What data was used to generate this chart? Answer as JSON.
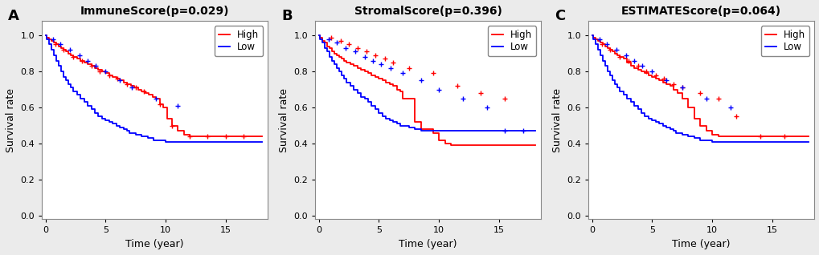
{
  "panels": [
    {
      "label": "A",
      "title": "ImmuneScore(p=0.029)",
      "high": {
        "times": [
          0,
          0.1,
          0.3,
          0.5,
          0.7,
          0.9,
          1.1,
          1.3,
          1.5,
          1.7,
          1.9,
          2.1,
          2.3,
          2.6,
          2.9,
          3.2,
          3.5,
          3.8,
          4.1,
          4.4,
          4.7,
          5.0,
          5.3,
          5.6,
          5.9,
          6.2,
          6.5,
          6.8,
          7.1,
          7.4,
          7.7,
          8.0,
          8.3,
          8.6,
          8.9,
          9.2,
          9.5,
          9.8,
          10.1,
          10.5,
          11.0,
          11.5,
          12.0,
          13.0,
          14.0,
          15.0,
          16.0,
          17.0,
          18.0
        ],
        "surv": [
          1.0,
          0.99,
          0.98,
          0.97,
          0.96,
          0.95,
          0.94,
          0.93,
          0.92,
          0.91,
          0.9,
          0.89,
          0.88,
          0.87,
          0.86,
          0.85,
          0.84,
          0.83,
          0.82,
          0.81,
          0.8,
          0.79,
          0.78,
          0.77,
          0.76,
          0.75,
          0.74,
          0.73,
          0.72,
          0.71,
          0.7,
          0.69,
          0.68,
          0.67,
          0.66,
          0.65,
          0.62,
          0.6,
          0.54,
          0.5,
          0.47,
          0.45,
          0.44,
          0.44,
          0.44,
          0.44,
          0.44,
          0.44,
          0.44
        ],
        "censor_times": [
          0.8,
          1.5,
          2.3,
          3.0,
          3.8,
          4.5,
          5.3,
          6.0,
          6.8,
          7.5,
          8.2,
          9.5,
          10.5,
          12.0,
          13.5,
          15.0,
          16.5
        ],
        "censor_surv": [
          0.95,
          0.92,
          0.88,
          0.86,
          0.83,
          0.8,
          0.78,
          0.76,
          0.73,
          0.71,
          0.69,
          0.62,
          0.5,
          0.44,
          0.44,
          0.44,
          0.44
        ]
      },
      "low": {
        "times": [
          0,
          0.1,
          0.3,
          0.5,
          0.7,
          0.9,
          1.1,
          1.3,
          1.5,
          1.7,
          1.9,
          2.1,
          2.3,
          2.6,
          2.9,
          3.2,
          3.5,
          3.8,
          4.1,
          4.4,
          4.7,
          5.0,
          5.3,
          5.6,
          5.9,
          6.2,
          6.5,
          6.8,
          7.0,
          7.5,
          8.0,
          8.5,
          9.0,
          9.5,
          10.0,
          10.5,
          11.0,
          11.5,
          12.0,
          13.0,
          14.0,
          15.0,
          16.0,
          17.0,
          18.0
        ],
        "surv": [
          1.0,
          0.98,
          0.95,
          0.92,
          0.89,
          0.86,
          0.83,
          0.8,
          0.77,
          0.75,
          0.73,
          0.71,
          0.69,
          0.67,
          0.65,
          0.63,
          0.61,
          0.59,
          0.57,
          0.55,
          0.54,
          0.53,
          0.52,
          0.51,
          0.5,
          0.49,
          0.48,
          0.47,
          0.46,
          0.45,
          0.44,
          0.43,
          0.42,
          0.42,
          0.41,
          0.41,
          0.41,
          0.41,
          0.41,
          0.41,
          0.41,
          0.41,
          0.41,
          0.41,
          0.41
        ],
        "censor_times": [
          0.6,
          1.2,
          2.0,
          2.8,
          3.5,
          4.2,
          5.0,
          6.2,
          7.2,
          9.2,
          11.0
        ],
        "censor_surv": [
          0.98,
          0.95,
          0.92,
          0.89,
          0.86,
          0.83,
          0.8,
          0.75,
          0.71,
          0.65,
          0.61
        ]
      }
    },
    {
      "label": "B",
      "title": "StromalScore(p=0.396)",
      "high": {
        "times": [
          0,
          0.1,
          0.3,
          0.5,
          0.7,
          0.9,
          1.1,
          1.3,
          1.5,
          1.7,
          1.9,
          2.1,
          2.3,
          2.6,
          2.9,
          3.2,
          3.5,
          3.8,
          4.1,
          4.4,
          4.7,
          5.0,
          5.3,
          5.6,
          5.9,
          6.2,
          6.5,
          6.8,
          7.0,
          7.5,
          8.0,
          8.5,
          9.0,
          9.5,
          10.0,
          10.5,
          11.0,
          12.0,
          13.0,
          14.0,
          15.0,
          16.0,
          17.0,
          18.0
        ],
        "surv": [
          1.0,
          0.99,
          0.97,
          0.96,
          0.94,
          0.93,
          0.91,
          0.9,
          0.89,
          0.88,
          0.87,
          0.86,
          0.85,
          0.84,
          0.83,
          0.82,
          0.81,
          0.8,
          0.79,
          0.78,
          0.77,
          0.76,
          0.75,
          0.74,
          0.73,
          0.72,
          0.7,
          0.69,
          0.65,
          0.65,
          0.52,
          0.48,
          0.48,
          0.46,
          0.42,
          0.4,
          0.39,
          0.39,
          0.39,
          0.39,
          0.39,
          0.39,
          0.39,
          0.39
        ],
        "censor_times": [
          1.0,
          1.8,
          2.5,
          3.2,
          4.0,
          4.7,
          5.5,
          6.2,
          7.5,
          9.5,
          11.5,
          13.5,
          15.5
        ],
        "censor_surv": [
          0.99,
          0.97,
          0.95,
          0.93,
          0.91,
          0.89,
          0.87,
          0.85,
          0.82,
          0.79,
          0.72,
          0.68,
          0.65
        ]
      },
      "low": {
        "times": [
          0,
          0.1,
          0.3,
          0.5,
          0.7,
          0.9,
          1.1,
          1.3,
          1.5,
          1.7,
          1.9,
          2.1,
          2.3,
          2.6,
          2.9,
          3.2,
          3.5,
          3.8,
          4.1,
          4.4,
          4.7,
          5.0,
          5.3,
          5.6,
          5.9,
          6.2,
          6.5,
          6.8,
          7.0,
          7.5,
          8.0,
          8.5,
          9.0,
          9.5,
          10.0,
          10.5,
          11.0,
          12.0,
          13.0,
          14.0,
          15.0,
          16.0,
          17.0,
          18.0
        ],
        "surv": [
          1.0,
          0.98,
          0.96,
          0.93,
          0.91,
          0.88,
          0.86,
          0.84,
          0.82,
          0.8,
          0.78,
          0.76,
          0.74,
          0.72,
          0.7,
          0.68,
          0.66,
          0.65,
          0.63,
          0.61,
          0.59,
          0.57,
          0.55,
          0.54,
          0.53,
          0.52,
          0.51,
          0.5,
          0.5,
          0.49,
          0.48,
          0.47,
          0.47,
          0.47,
          0.47,
          0.47,
          0.47,
          0.47,
          0.47,
          0.47,
          0.47,
          0.47,
          0.47,
          0.47
        ],
        "censor_times": [
          0.8,
          1.5,
          2.2,
          3.0,
          3.8,
          4.5,
          5.2,
          6.0,
          7.0,
          8.5,
          10.0,
          12.0,
          14.0,
          15.5,
          17.0
        ],
        "censor_surv": [
          0.98,
          0.96,
          0.93,
          0.91,
          0.88,
          0.86,
          0.84,
          0.82,
          0.79,
          0.75,
          0.7,
          0.65,
          0.6,
          0.47,
          0.47
        ]
      }
    },
    {
      "label": "C",
      "title": "ESTIMATEScore(p=0.064)",
      "high": {
        "times": [
          0,
          0.1,
          0.3,
          0.5,
          0.7,
          0.9,
          1.1,
          1.3,
          1.5,
          1.7,
          1.9,
          2.1,
          2.3,
          2.6,
          2.9,
          3.2,
          3.5,
          3.8,
          4.1,
          4.4,
          4.7,
          5.0,
          5.3,
          5.6,
          5.9,
          6.2,
          6.5,
          6.8,
          7.1,
          7.5,
          8.0,
          8.5,
          9.0,
          9.5,
          10.0,
          10.5,
          11.0,
          11.5,
          12.0,
          13.0,
          14.0,
          15.0,
          16.0,
          17.0,
          18.0
        ],
        "surv": [
          1.0,
          0.99,
          0.98,
          0.97,
          0.96,
          0.95,
          0.94,
          0.93,
          0.92,
          0.91,
          0.9,
          0.89,
          0.88,
          0.87,
          0.85,
          0.83,
          0.82,
          0.81,
          0.8,
          0.79,
          0.78,
          0.77,
          0.76,
          0.75,
          0.74,
          0.73,
          0.72,
          0.7,
          0.68,
          0.65,
          0.6,
          0.54,
          0.5,
          0.47,
          0.45,
          0.44,
          0.44,
          0.44,
          0.44,
          0.44,
          0.44,
          0.44,
          0.44,
          0.44,
          0.44
        ],
        "censor_times": [
          0.8,
          1.5,
          2.3,
          3.0,
          3.8,
          4.5,
          5.3,
          6.0,
          6.8,
          7.5,
          9.0,
          10.5,
          12.0,
          14.0,
          16.0
        ],
        "censor_surv": [
          0.95,
          0.92,
          0.88,
          0.86,
          0.83,
          0.8,
          0.78,
          0.76,
          0.73,
          0.71,
          0.68,
          0.65,
          0.55,
          0.44,
          0.44
        ]
      },
      "low": {
        "times": [
          0,
          0.1,
          0.3,
          0.5,
          0.7,
          0.9,
          1.1,
          1.3,
          1.5,
          1.7,
          1.9,
          2.1,
          2.3,
          2.6,
          2.9,
          3.2,
          3.5,
          3.8,
          4.1,
          4.4,
          4.7,
          5.0,
          5.3,
          5.6,
          5.9,
          6.2,
          6.5,
          6.8,
          7.0,
          7.5,
          8.0,
          8.5,
          9.0,
          9.5,
          10.0,
          10.5,
          11.0,
          11.5,
          12.0,
          13.0,
          14.0,
          15.0,
          16.0,
          17.0,
          18.0
        ],
        "surv": [
          1.0,
          0.98,
          0.95,
          0.92,
          0.89,
          0.86,
          0.83,
          0.8,
          0.78,
          0.75,
          0.73,
          0.71,
          0.69,
          0.67,
          0.65,
          0.63,
          0.61,
          0.59,
          0.57,
          0.55,
          0.54,
          0.53,
          0.52,
          0.51,
          0.5,
          0.49,
          0.48,
          0.47,
          0.46,
          0.45,
          0.44,
          0.43,
          0.42,
          0.42,
          0.41,
          0.41,
          0.41,
          0.41,
          0.41,
          0.41,
          0.41,
          0.41,
          0.41,
          0.41,
          0.41
        ],
        "censor_times": [
          0.6,
          1.2,
          2.0,
          2.8,
          3.5,
          4.2,
          5.0,
          6.2,
          7.5,
          9.5,
          11.5
        ],
        "censor_surv": [
          0.98,
          0.95,
          0.92,
          0.89,
          0.86,
          0.83,
          0.8,
          0.75,
          0.71,
          0.65,
          0.6
        ]
      }
    }
  ],
  "high_color": "#FF0000",
  "low_color": "#0000FF",
  "bg_color": "#EBEBEB",
  "panel_bg": "#FFFFFF",
  "border_color": "#888888",
  "xlabel": "Time (year)",
  "ylabel": "Survival rate",
  "ylim": [
    -0.02,
    1.08
  ],
  "xlim": [
    -0.3,
    18.5
  ],
  "yticks": [
    0.0,
    0.2,
    0.4,
    0.6,
    0.8,
    1.0
  ],
  "xticks": [
    0,
    5,
    10,
    15
  ],
  "title_fontsize": 10,
  "label_fontsize": 9,
  "tick_fontsize": 8,
  "legend_fontsize": 8.5,
  "line_width": 1.3,
  "censor_size": 5,
  "censor_lw": 1.0
}
